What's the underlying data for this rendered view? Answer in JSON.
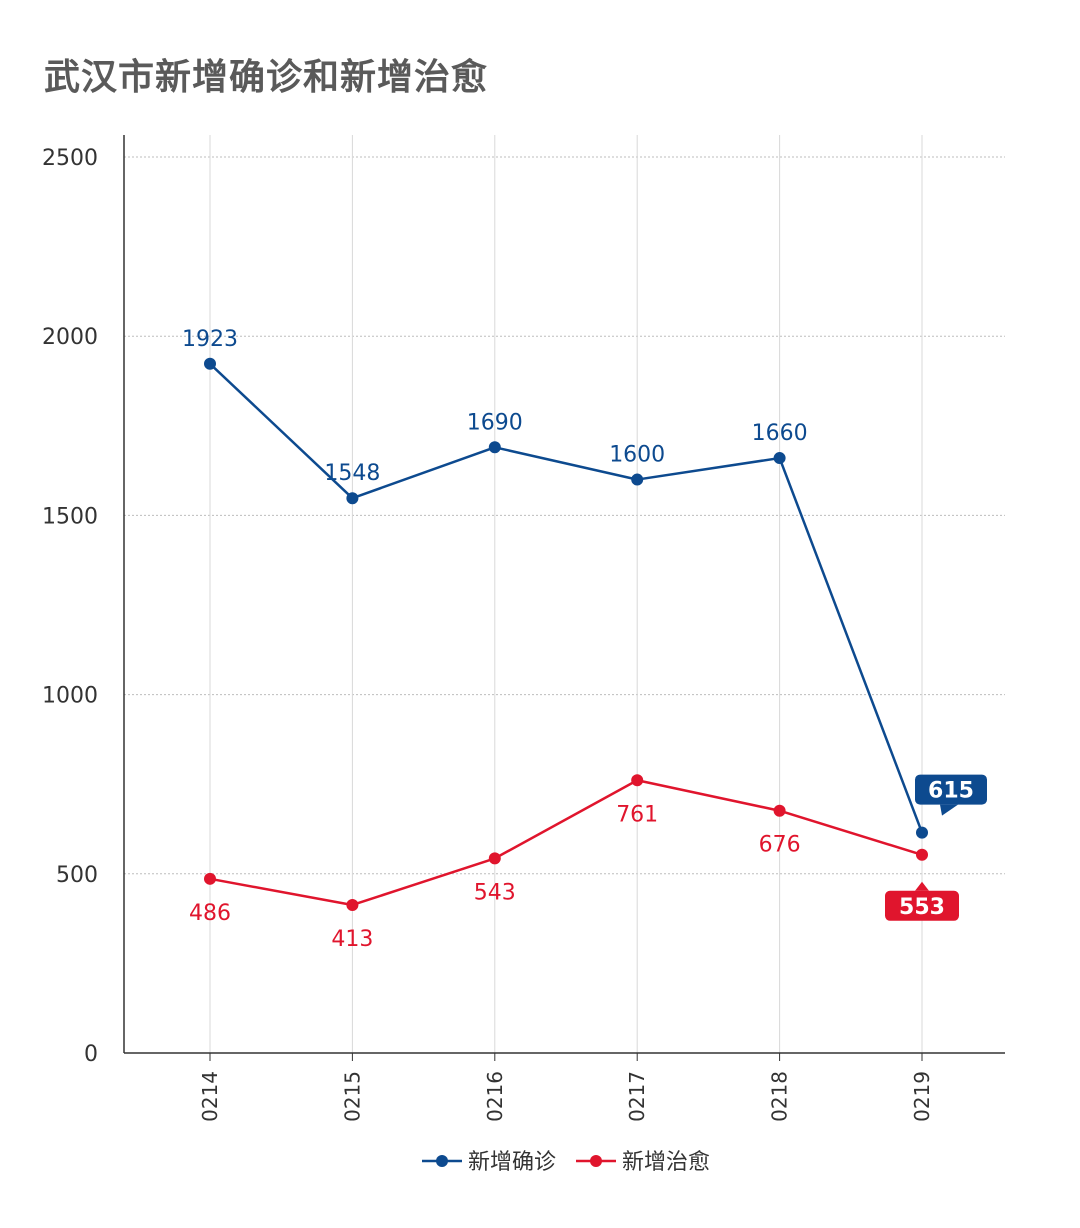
{
  "title": "武汉市新增确诊和新增治愈",
  "chart_data": {
    "type": "line",
    "categories": [
      "0214",
      "0215",
      "0216",
      "0217",
      "0218",
      "0219"
    ],
    "series": [
      {
        "name": "新增确诊",
        "color": "#0d4a8f",
        "values": [
          1923,
          1548,
          1690,
          1600,
          1660,
          615
        ]
      },
      {
        "name": "新增治愈",
        "color": "#e0152d",
        "values": [
          486,
          413,
          543,
          761,
          676,
          553
        ]
      }
    ],
    "ylim": [
      0,
      2500
    ],
    "yticks": [
      0,
      500,
      1000,
      1500,
      2000,
      2500
    ],
    "grid": true,
    "legend_position": "bottom-center",
    "highlight_last_point": true
  }
}
